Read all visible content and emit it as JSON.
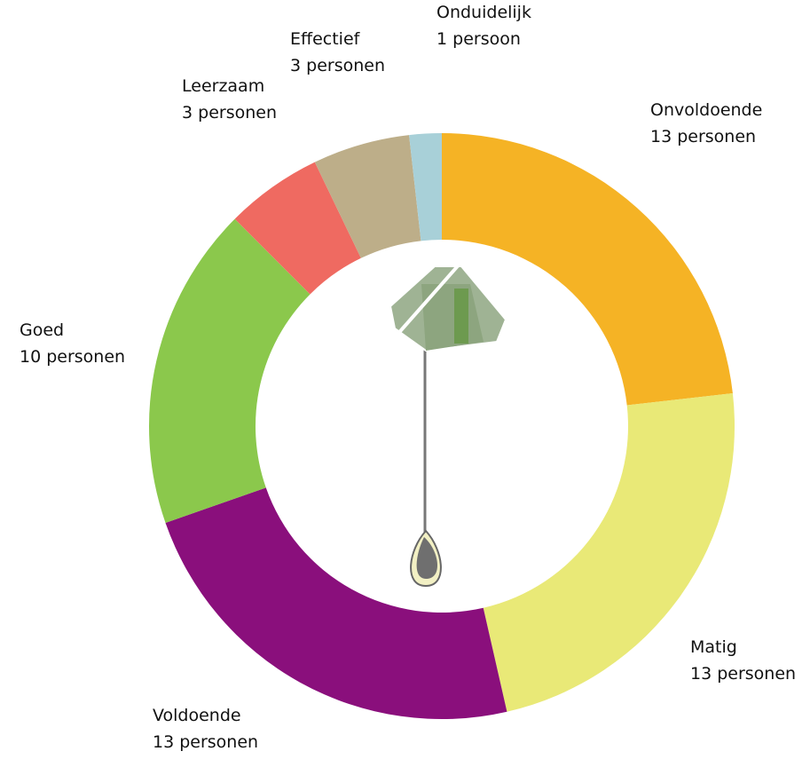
{
  "chart_data": {
    "type": "donut",
    "categories": [
      "Onvoldoende",
      "Matig",
      "Voldoende",
      "Goed",
      "Leerzaam",
      "Effectief",
      "Onduidelijk"
    ],
    "values": [
      13,
      13,
      13,
      10,
      3,
      3,
      1
    ],
    "value_labels": [
      "13 personen",
      "13 personen",
      "13 personen",
      "10 personen",
      "3 personen",
      "3 personen",
      "1 persoon"
    ],
    "colors": [
      "#f5b325",
      "#e9e977",
      "#8a0f7c",
      "#8bc84c",
      "#ef6a61",
      "#bdae89",
      "#a8d0d8"
    ]
  }
}
